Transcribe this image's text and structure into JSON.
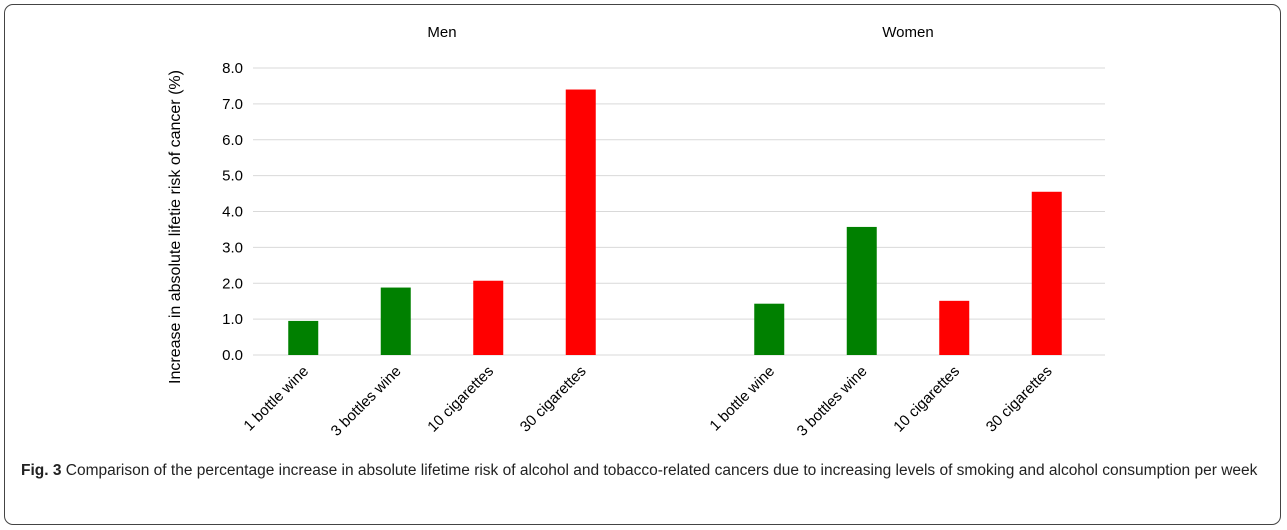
{
  "chart_data": {
    "type": "bar",
    "ylabel": "Increase in absolute lifetie risk of cancer (%)",
    "ylim": [
      0,
      8
    ],
    "yticks": [
      "0.0",
      "1.0",
      "2.0",
      "3.0",
      "4.0",
      "5.0",
      "6.0",
      "7.0",
      "8.0"
    ],
    "grid": true,
    "colors": {
      "alcohol": "#008000",
      "tobacco": "#ff0000"
    },
    "panels": [
      {
        "title": "Men",
        "categories": [
          "1 bottle wine",
          "3 bottles wine",
          "10 cigarettes",
          "30 cigarettes"
        ],
        "values": [
          0.95,
          1.88,
          2.07,
          7.4
        ],
        "bar_colors": [
          "#008000",
          "#008000",
          "#ff0000",
          "#ff0000"
        ]
      },
      {
        "title": "Women",
        "categories": [
          "1 bottle wine",
          "3 bottles wine",
          "10 cigarettes",
          "30 cigarettes"
        ],
        "values": [
          1.43,
          3.57,
          1.51,
          4.55
        ],
        "bar_colors": [
          "#008000",
          "#008000",
          "#ff0000",
          "#ff0000"
        ]
      }
    ]
  },
  "caption": {
    "label": "Fig. 3",
    "text": "Comparison of the percentage increase in absolute lifetime risk of alcohol and tobacco-related cancers due to increasing levels of smoking and alcohol consumption per week"
  }
}
